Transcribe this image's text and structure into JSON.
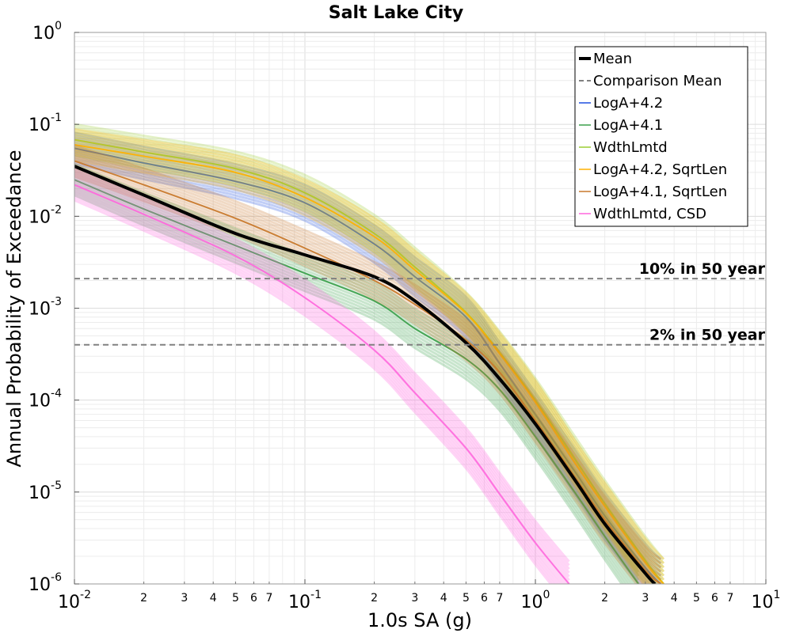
{
  "chart_data": {
    "type": "line",
    "title": "Salt Lake City",
    "xlabel": "1.0s SA (g)",
    "ylabel": "Annual Probability of Exceedance",
    "xscale": "log",
    "yscale": "log",
    "xlim": [
      0.01,
      10
    ],
    "ylim": [
      1e-06,
      1
    ],
    "grid": true,
    "legend_position": "top-right",
    "x_major_ticks": [
      {
        "value": 0.01,
        "base": "10",
        "exp": "-2"
      },
      {
        "value": 0.1,
        "base": "10",
        "exp": "-1"
      },
      {
        "value": 1,
        "base": "10",
        "exp": "0"
      },
      {
        "value": 10,
        "base": "10",
        "exp": "1"
      }
    ],
    "x_minor_tick_labels": [
      "2",
      "3",
      "4",
      "5",
      "6",
      "7"
    ],
    "y_major_ticks": [
      {
        "value": 1,
        "base": "10",
        "exp": "0"
      },
      {
        "value": 0.1,
        "base": "10",
        "exp": "-1"
      },
      {
        "value": 0.01,
        "base": "10",
        "exp": "-2"
      },
      {
        "value": 0.001,
        "base": "10",
        "exp": "-3"
      },
      {
        "value": 0.0001,
        "base": "10",
        "exp": "-4"
      },
      {
        "value": 1e-05,
        "base": "10",
        "exp": "-5"
      },
      {
        "value": 1e-06,
        "base": "10",
        "exp": "-6"
      }
    ],
    "reference_lines": [
      {
        "label": "10% in 50 year",
        "y": 0.0021,
        "color": "#808080",
        "style": "dashed"
      },
      {
        "label": "2% in 50 year",
        "y": 0.0004,
        "color": "#808080",
        "style": "dashed"
      }
    ],
    "legend": [
      {
        "label": "Mean",
        "color": "#000000",
        "style": "solid-thick"
      },
      {
        "label": "Comparison Mean",
        "color": "#808080",
        "style": "dashed"
      },
      {
        "label": "LogA+4.2",
        "color": "#1f4fe0",
        "style": "solid"
      },
      {
        "label": "LogA+4.1",
        "color": "#3aa04a",
        "style": "solid"
      },
      {
        "label": "WdthLmtd",
        "color": "#9acd32",
        "style": "solid"
      },
      {
        "label": "LogA+4.2, SqrtLen",
        "color": "#ffb000",
        "style": "solid"
      },
      {
        "label": "LogA+4.1, SqrtLen",
        "color": "#c8782a",
        "style": "solid"
      },
      {
        "label": "WdthLmtd, CSD",
        "color": "#ff66dd",
        "style": "solid"
      }
    ],
    "series": [
      {
        "name": "Mean",
        "color": "#000000",
        "x": [
          0.01,
          0.02,
          0.05,
          0.1,
          0.2,
          0.3,
          0.5,
          0.7,
          1.0,
          1.5,
          2.0,
          3.0,
          3.3
        ],
        "y": [
          0.035,
          0.017,
          0.0065,
          0.0038,
          0.0022,
          0.0012,
          0.00042,
          0.00017,
          5.5e-05,
          1.3e-05,
          4.5e-06,
          1.3e-06,
          1e-06
        ]
      },
      {
        "name": "LogA+4.2",
        "color": "#1f4fe0",
        "x": [
          0.01,
          0.02,
          0.05,
          0.1,
          0.2,
          0.3,
          0.5,
          0.7,
          1.0,
          1.5,
          2.0,
          3.0,
          3.5
        ],
        "y": [
          0.055,
          0.038,
          0.024,
          0.014,
          0.005,
          0.0022,
          0.0008,
          0.00025,
          7e-05,
          1.6e-05,
          5.5e-06,
          1.5e-06,
          1e-06
        ]
      },
      {
        "name": "LogA+4.1",
        "color": "#3aa04a",
        "x": [
          0.01,
          0.02,
          0.05,
          0.1,
          0.2,
          0.3,
          0.5,
          0.7,
          1.0,
          1.5,
          2.0,
          2.8
        ],
        "y": [
          0.025,
          0.012,
          0.0048,
          0.0024,
          0.0012,
          0.0006,
          0.00028,
          0.00013,
          4e-05,
          9.5e-06,
          3.3e-06,
          1e-06
        ]
      },
      {
        "name": "WdthLmtd",
        "color": "#9acd32",
        "x": [
          0.01,
          0.02,
          0.05,
          0.1,
          0.2,
          0.3,
          0.5,
          0.7,
          1.0,
          1.5,
          2.0,
          3.0,
          3.6
        ],
        "y": [
          0.068,
          0.05,
          0.033,
          0.018,
          0.0065,
          0.0028,
          0.0009,
          0.00033,
          0.0001,
          2.2e-05,
          7.5e-06,
          1.8e-06,
          1e-06
        ]
      },
      {
        "name": "LogA+4.2, SqrtLen",
        "color": "#ffb000",
        "x": [
          0.01,
          0.02,
          0.05,
          0.1,
          0.2,
          0.3,
          0.5,
          0.7,
          1.0,
          1.5,
          2.0,
          3.0,
          3.6
        ],
        "y": [
          0.06,
          0.045,
          0.03,
          0.016,
          0.006,
          0.0026,
          0.00088,
          0.00032,
          9.5e-05,
          2e-05,
          7e-06,
          1.7e-06,
          1e-06
        ]
      },
      {
        "name": "LogA+4.1, SqrtLen",
        "color": "#c8782a",
        "x": [
          0.01,
          0.02,
          0.05,
          0.1,
          0.2,
          0.3,
          0.5,
          0.7,
          1.0,
          1.5,
          2.0,
          3.0,
          3.5
        ],
        "y": [
          0.04,
          0.022,
          0.0095,
          0.0045,
          0.002,
          0.0011,
          0.00045,
          0.0002,
          6e-05,
          1.4e-05,
          5e-06,
          1.4e-06,
          1e-06
        ]
      },
      {
        "name": "WdthLmtd, CSD",
        "color": "#ff66dd",
        "x": [
          0.01,
          0.02,
          0.05,
          0.1,
          0.2,
          0.3,
          0.5,
          0.7,
          1.0,
          1.4
        ],
        "y": [
          0.022,
          0.0105,
          0.0037,
          0.0013,
          0.00035,
          0.00012,
          3e-05,
          9.5e-06,
          2.8e-06,
          1e-06
        ]
      }
    ]
  }
}
